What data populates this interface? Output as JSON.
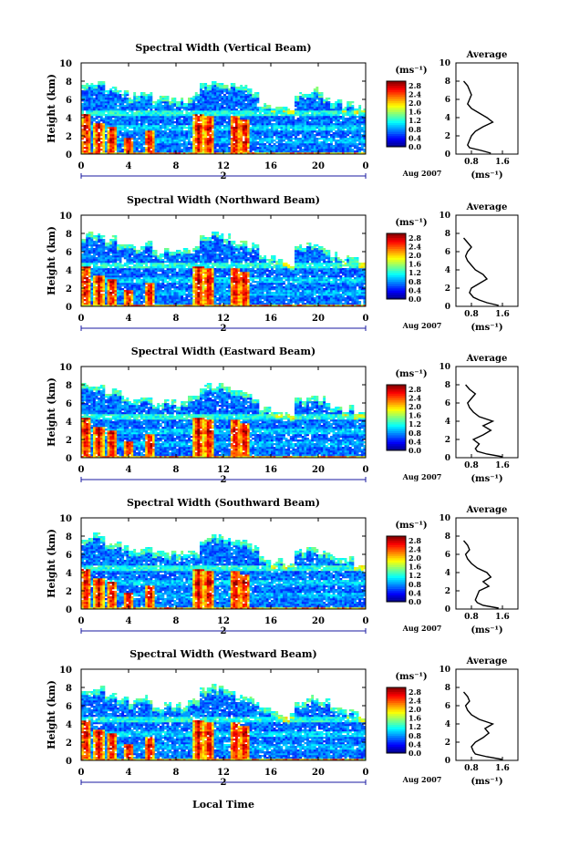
{
  "chart_data": [
    {
      "type": "heatmap",
      "title": "Spectral Width (Vertical Beam)",
      "ylabel": "Height (km)",
      "x_ticks": [
        "0",
        "4",
        "8",
        "12",
        "16",
        "20",
        "0"
      ],
      "y_ticks": [
        "0",
        "2",
        "4",
        "6",
        "8",
        "10"
      ],
      "xlim": [
        0,
        24
      ],
      "ylim": [
        0,
        10
      ],
      "date_label": "Aug 2007",
      "date_day": "2",
      "colorbar": {
        "unit": "(ms⁻¹)",
        "ticks": [
          "0.0",
          "0.4",
          "0.8",
          "1.2",
          "1.6",
          "2.0",
          "2.4",
          "2.8"
        ],
        "range": [
          0,
          3.0
        ]
      },
      "average": {
        "title": "Average",
        "xlabel": "(ms⁻¹)",
        "x_ticks": [
          "0.8",
          "1.6"
        ],
        "xlim": [
          0.4,
          2.0
        ],
        "y_ticks": [
          "0",
          "2",
          "4",
          "6",
          "8",
          "10"
        ],
        "height_km": [
          0.1,
          0.4,
          0.7,
          1.0,
          1.5,
          2.0,
          2.5,
          3.0,
          3.5,
          4.0,
          4.5,
          5.0,
          5.5,
          6.0,
          6.5,
          7.0,
          7.5,
          8.0
        ],
        "width": [
          1.3,
          1.05,
          0.75,
          0.7,
          0.75,
          0.8,
          0.9,
          1.1,
          1.35,
          1.2,
          1.0,
          0.8,
          0.7,
          0.75,
          0.8,
          0.75,
          0.7,
          0.6
        ]
      }
    },
    {
      "type": "heatmap",
      "title": "Spectral Width (Northward Beam)",
      "ylabel": "Height (km)",
      "x_ticks": [
        "0",
        "4",
        "8",
        "12",
        "16",
        "20",
        "0"
      ],
      "y_ticks": [
        "0",
        "2",
        "4",
        "6",
        "8",
        "10"
      ],
      "xlim": [
        0,
        24
      ],
      "ylim": [
        0,
        10
      ],
      "date_label": "Aug 2007",
      "date_day": "2",
      "colorbar": {
        "unit": "(ms⁻¹)",
        "ticks": [
          "0.0",
          "0.4",
          "0.8",
          "1.2",
          "1.6",
          "2.0",
          "2.4",
          "2.8"
        ],
        "range": [
          0,
          3.0
        ]
      },
      "average": {
        "title": "Average",
        "xlabel": "(ms⁻¹)",
        "x_ticks": [
          "0.8",
          "1.6"
        ],
        "xlim": [
          0.4,
          2.0
        ],
        "y_ticks": [
          "0",
          "2",
          "4",
          "6",
          "8",
          "10"
        ],
        "height_km": [
          0.1,
          0.4,
          0.7,
          1.0,
          1.5,
          2.0,
          2.5,
          3.0,
          3.5,
          4.0,
          4.5,
          5.0,
          5.5,
          6.0,
          6.5,
          7.0,
          7.5
        ],
        "width": [
          1.5,
          1.2,
          1.0,
          0.85,
          0.75,
          0.8,
          1.0,
          1.2,
          1.1,
          0.9,
          0.8,
          0.7,
          0.65,
          0.7,
          0.8,
          0.7,
          0.6
        ]
      }
    },
    {
      "type": "heatmap",
      "title": "Spectral Width (Eastward Beam)",
      "ylabel": "Height (km)",
      "x_ticks": [
        "0",
        "4",
        "8",
        "12",
        "16",
        "20",
        "0"
      ],
      "y_ticks": [
        "0",
        "2",
        "4",
        "6",
        "8",
        "10"
      ],
      "xlim": [
        0,
        24
      ],
      "ylim": [
        0,
        10
      ],
      "date_label": "Aug 2007",
      "date_day": "2",
      "colorbar": {
        "unit": "(ms⁻¹)",
        "ticks": [
          "0.0",
          "0.4",
          "0.8",
          "1.2",
          "1.6",
          "2.0",
          "2.4",
          "2.8"
        ],
        "range": [
          0,
          3.0
        ]
      },
      "average": {
        "title": "Average",
        "xlabel": "(ms⁻¹)",
        "x_ticks": [
          "0.8",
          "1.6"
        ],
        "xlim": [
          0.4,
          2.0
        ],
        "y_ticks": [
          "0",
          "2",
          "4",
          "6",
          "8",
          "10"
        ],
        "height_km": [
          0.1,
          0.4,
          0.7,
          1.0,
          1.5,
          2.0,
          2.5,
          3.0,
          3.5,
          4.0,
          4.5,
          5.0,
          5.5,
          6.0,
          6.5,
          7.0,
          7.5,
          8.0
        ],
        "width": [
          1.6,
          1.2,
          0.95,
          0.9,
          1.0,
          0.85,
          1.1,
          1.3,
          1.1,
          1.35,
          1.0,
          0.85,
          0.75,
          0.7,
          0.8,
          0.9,
          0.75,
          0.65
        ]
      }
    },
    {
      "type": "heatmap",
      "title": "Spectral Width (Southward Beam)",
      "ylabel": "Height (km)",
      "x_ticks": [
        "0",
        "4",
        "8",
        "12",
        "16",
        "20",
        "0"
      ],
      "y_ticks": [
        "0",
        "2",
        "4",
        "6",
        "8",
        "10"
      ],
      "xlim": [
        0,
        24
      ],
      "ylim": [
        0,
        10
      ],
      "date_label": "Aug 2007",
      "date_day": "2",
      "colorbar": {
        "unit": "(ms⁻¹)",
        "ticks": [
          "0.0",
          "0.4",
          "0.8",
          "1.2",
          "1.6",
          "2.0",
          "2.4",
          "2.8"
        ],
        "range": [
          0,
          3.0
        ]
      },
      "average": {
        "title": "Average",
        "xlabel": "(ms⁻¹)",
        "x_ticks": [
          "0.8",
          "1.6"
        ],
        "xlim": [
          0.4,
          2.0
        ],
        "y_ticks": [
          "0",
          "2",
          "4",
          "6",
          "8",
          "10"
        ],
        "height_km": [
          0.1,
          0.4,
          0.7,
          1.0,
          1.5,
          2.0,
          2.5,
          3.0,
          3.5,
          4.0,
          4.5,
          5.0,
          5.5,
          6.0,
          6.5,
          7.0,
          7.5
        ],
        "width": [
          1.5,
          1.1,
          0.95,
          0.9,
          0.95,
          1.0,
          1.25,
          1.1,
          1.3,
          1.2,
          0.95,
          0.8,
          0.7,
          0.65,
          0.75,
          0.7,
          0.6
        ]
      }
    },
    {
      "type": "heatmap",
      "title": "Spectral Width (Westward Beam)",
      "ylabel": "Height (km)",
      "xlabel": "Local Time",
      "x_ticks": [
        "0",
        "4",
        "8",
        "12",
        "16",
        "20",
        "0"
      ],
      "y_ticks": [
        "0",
        "2",
        "4",
        "6",
        "8",
        "10"
      ],
      "xlim": [
        0,
        24
      ],
      "ylim": [
        0,
        10
      ],
      "date_label": "Aug 2007",
      "date_day": "2",
      "colorbar": {
        "unit": "(ms⁻¹)",
        "ticks": [
          "0.0",
          "0.4",
          "0.8",
          "1.2",
          "1.6",
          "2.0",
          "2.4",
          "2.8"
        ],
        "range": [
          0,
          3.0
        ]
      },
      "average": {
        "title": "Average",
        "xlabel": "(ms⁻¹)",
        "x_ticks": [
          "0.8",
          "1.6"
        ],
        "xlim": [
          0.4,
          2.0
        ],
        "y_ticks": [
          "0",
          "2",
          "4",
          "6",
          "8",
          "10"
        ],
        "height_km": [
          0.1,
          0.4,
          0.7,
          1.0,
          1.5,
          2.0,
          2.5,
          3.0,
          3.5,
          4.0,
          4.5,
          5.0,
          5.5,
          6.0,
          6.5,
          7.0,
          7.5
        ],
        "width": [
          1.6,
          1.2,
          0.9,
          0.85,
          0.8,
          0.9,
          1.1,
          1.25,
          1.15,
          1.35,
          1.0,
          0.8,
          0.7,
          0.65,
          0.75,
          0.7,
          0.6
        ]
      }
    }
  ]
}
